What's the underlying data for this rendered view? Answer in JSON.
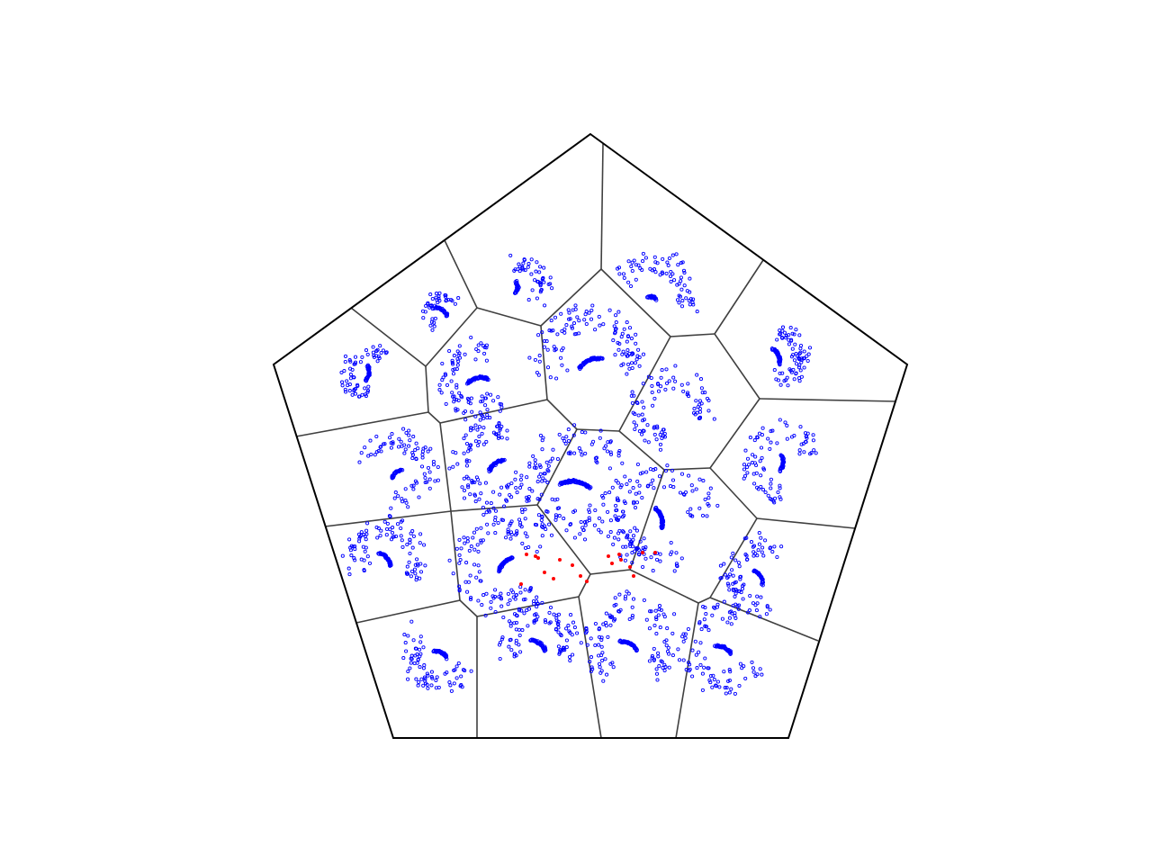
{
  "colors": {
    "background": "#ffffff",
    "boundary": "#000000",
    "cell_edges": "#404040",
    "trajectory_points": "#0000ff",
    "highlight_points": "#ff0000"
  },
  "shapes": {
    "boundary": "pentagon",
    "partition": "voronoi-cells"
  },
  "figure": {
    "cell_count": 20,
    "ring_count": 20,
    "highlight_point_count": 18
  }
}
